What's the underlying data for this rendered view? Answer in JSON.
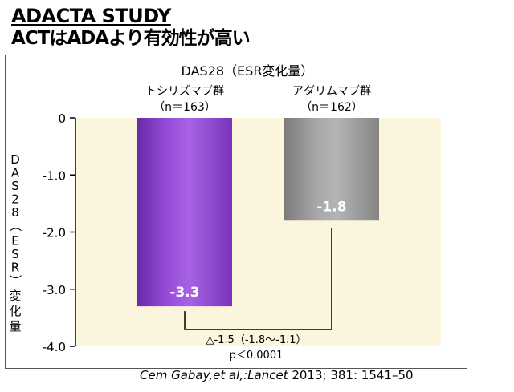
{
  "heading": {
    "title": "ADACTA STUDY",
    "subtitle": "ACTはADAより有効性が高い"
  },
  "citation": {
    "authors": "Cem Gabay,et al,:",
    "journal": "Lancet",
    "details": " 2013; 381: 1541–50"
  },
  "chart_data": {
    "type": "bar",
    "title": "DAS28（ESR変化量）",
    "ylabel": "DAS28（ESR）変化量",
    "ylim": [
      -4.0,
      0
    ],
    "yticks": [
      0,
      -1.0,
      -2.0,
      -3.0,
      -4.0
    ],
    "ytick_labels": [
      "0",
      "-1.0",
      "-2.0",
      "-3.0",
      "-4.0"
    ],
    "categories": [
      "トシリズマブ群",
      "アダリムマブ群"
    ],
    "n_labels": [
      "（n＝163）",
      "（n＝162）"
    ],
    "values": [
      -3.3,
      -1.8
    ],
    "value_labels": [
      "-3.3",
      "-1.8"
    ],
    "colors": [
      "#8a3fc9",
      "#8e8e8e"
    ],
    "plot_background": "#faf5dc",
    "comparison": {
      "difference_label": "△-1.5（-1.8～-1.1）",
      "p_label": "p＜0.0001"
    }
  }
}
